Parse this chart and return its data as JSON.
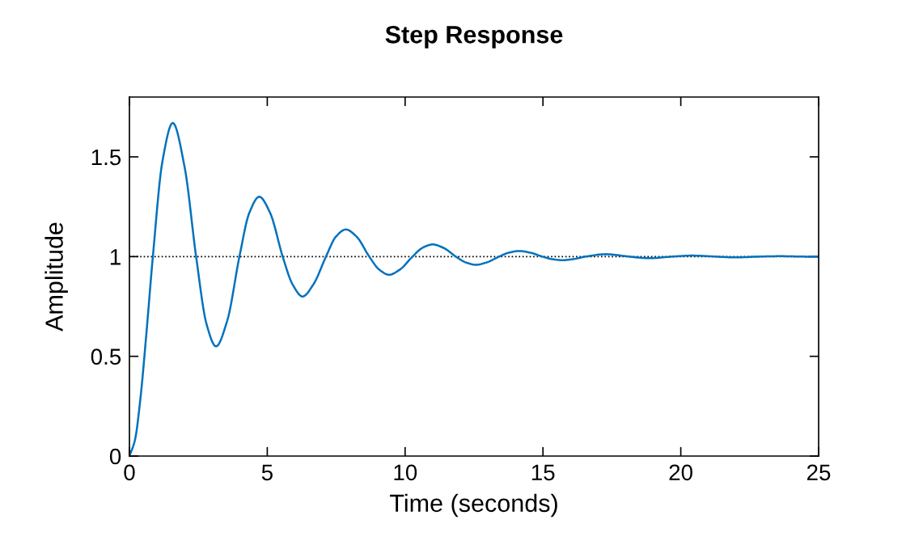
{
  "chart_data": {
    "type": "line",
    "title": "Step Response",
    "xlabel": "Time (seconds)",
    "ylabel": "Amplitude",
    "x": [
      0,
      0.2,
      0.4,
      0.6,
      0.85,
      1.2,
      1.571,
      2.0,
      2.419,
      2.8,
      3.14,
      3.55,
      3.99,
      4.35,
      4.71,
      5.1,
      5.56,
      5.92,
      6.28,
      6.67,
      7.13,
      7.49,
      7.85,
      8.24,
      8.7,
      9.06,
      9.42,
      9.81,
      10.27,
      10.63,
      11.0,
      11.39,
      11.84,
      12.2,
      12.57,
      12.96,
      13.41,
      13.77,
      14.14,
      14.53,
      14.98,
      15.34,
      15.7,
      16.09,
      16.55,
      17.28,
      18.12,
      18.85,
      19.69,
      20.4,
      21.26,
      22.0,
      22.83,
      23.6,
      24.4,
      25
    ],
    "series": [
      {
        "color": "#0072bd",
        "values": [
          0,
          0.08,
          0.29,
          0.59,
          1.0,
          1.48,
          1.67,
          1.45,
          1.0,
          0.66,
          0.55,
          0.68,
          1.0,
          1.22,
          1.3,
          1.22,
          1.0,
          0.86,
          0.8,
          0.86,
          1.0,
          1.1,
          1.136,
          1.1,
          1.0,
          0.935,
          0.909,
          0.935,
          1.0,
          1.044,
          1.061,
          1.044,
          1.0,
          0.971,
          0.959,
          0.971,
          1.0,
          1.02,
          1.028,
          1.02,
          1.0,
          0.987,
          0.982,
          0.987,
          1.0,
          1.012,
          1.0,
          0.992,
          1.0,
          1.005,
          1.0,
          0.996,
          1.0,
          1.002,
          1.0,
          0.999
        ]
      }
    ],
    "xlim": [
      0,
      25
    ],
    "ylim": [
      0,
      1.8
    ],
    "xticks": [
      0,
      5,
      10,
      15,
      20,
      25
    ],
    "yticks": [
      0,
      0.5,
      1,
      1.5
    ],
    "ref_lines": [
      {
        "axis": "y",
        "value": 1,
        "color": "#000000",
        "line_style": "dotted"
      }
    ],
    "grid": false,
    "legend": false,
    "line_style": "solid"
  }
}
